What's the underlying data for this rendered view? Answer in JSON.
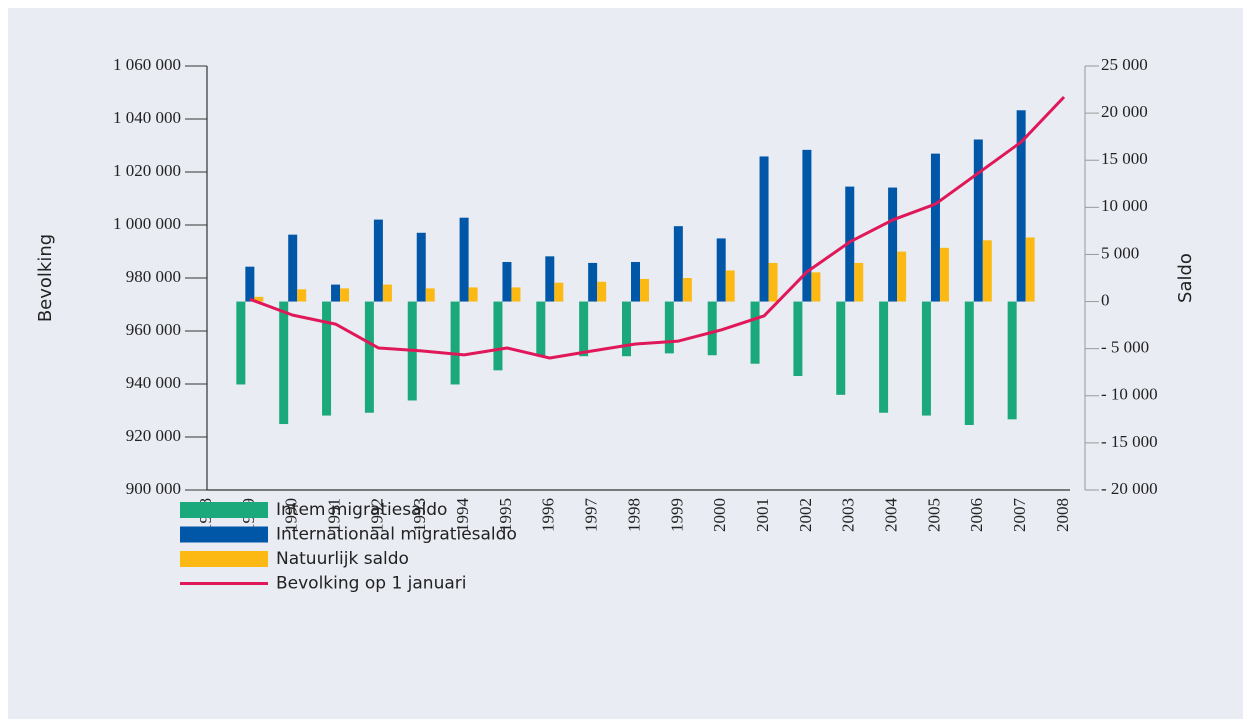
{
  "chart_data": {
    "type": "bar_line",
    "y_label": "Bevolking",
    "y2_label": "Saldo",
    "categories": [
      "1988",
      "1989",
      "1990",
      "1991",
      "1992",
      "1993",
      "1994",
      "1995",
      "1996",
      "1997",
      "1998",
      "1999",
      "2000",
      "2001",
      "2002",
      "2003",
      "2004",
      "2005",
      "2006",
      "2007",
      "2008"
    ],
    "series": [
      {
        "name": "Intem migratiesaldo",
        "color": "#1ba97b",
        "type": "bar",
        "axis": "y2",
        "values": [
          null,
          -8800,
          -13000,
          -12100,
          -11800,
          -10500,
          -8800,
          -7300,
          -5800,
          -5800,
          -5800,
          -5500,
          -5700,
          -6600,
          -7900,
          -9900,
          -11800,
          -12100,
          -13100,
          -12500,
          null
        ]
      },
      {
        "name": "Internationaal migratiesaldo",
        "color": "#0057a8",
        "type": "bar",
        "axis": "y2",
        "values": [
          null,
          3700,
          7100,
          1800,
          8700,
          7300,
          8900,
          4200,
          4800,
          4100,
          4200,
          8000,
          6700,
          15400,
          16100,
          12200,
          12100,
          15700,
          17200,
          20300,
          null
        ]
      },
      {
        "name": "Natuurlijk saldo",
        "color": "#fdb913",
        "type": "bar",
        "axis": "y2",
        "values": [
          null,
          500,
          1300,
          1400,
          1800,
          1400,
          1500,
          1500,
          2000,
          2100,
          2400,
          2500,
          3300,
          4100,
          3100,
          4100,
          5300,
          5700,
          6500,
          6800,
          null
        ]
      },
      {
        "name": "Bevolking op 1 januari",
        "color": "#e0185a",
        "type": "line",
        "values": [
          null,
          972000,
          966000,
          962600,
          953600,
          952500,
          951000,
          953600,
          949800,
          952500,
          955100,
          956200,
          960400,
          965700,
          982300,
          993600,
          1001900,
          1007900,
          1019600,
          1031300,
          1048300
        ]
      }
    ],
    "ylim": [
      900000,
      1060000
    ],
    "yticks": [
      {
        "value": 900000,
        "label": "900 000"
      },
      {
        "value": 920000,
        "label": "920 000"
      },
      {
        "value": 940000,
        "label": "940 000"
      },
      {
        "value": 960000,
        "label": "960 000"
      },
      {
        "value": 980000,
        "label": "980 000"
      },
      {
        "value": 1000000,
        "label": "1 000 000"
      },
      {
        "value": 1020000,
        "label": "1 020 000"
      },
      {
        "value": 1040000,
        "label": "1 040 000"
      },
      {
        "value": 1060000,
        "label": "1 060 000"
      }
    ],
    "y2lim": [
      -20000,
      25000
    ],
    "y2ticks": [
      {
        "value": -20000,
        "label": "- 20 000"
      },
      {
        "value": -15000,
        "label": "- 15 000"
      },
      {
        "value": -10000,
        "label": "- 10 000"
      },
      {
        "value": -5000,
        "label": "- 5 000"
      },
      0,
      {
        "value": 5000,
        "label": "5 000"
      },
      {
        "value": 10000,
        "label": "10 000"
      },
      {
        "value": 15000,
        "label": "15 000"
      },
      {
        "value": 20000,
        "label": "20 000"
      },
      {
        "value": 25000,
        "label": "25 000"
      }
    ]
  }
}
